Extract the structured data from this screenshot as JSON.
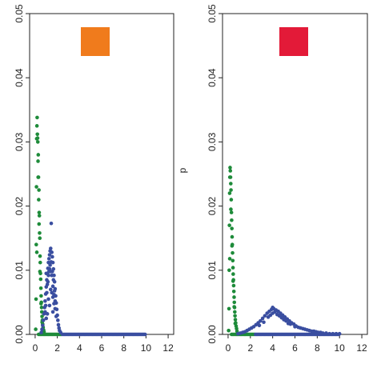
{
  "chart_data": [
    {
      "type": "scatter",
      "xlim": [
        -0.5,
        12.5
      ],
      "ylim": [
        0,
        0.05
      ],
      "x_ticks": [
        "0",
        "2",
        "4",
        "6",
        "8",
        "10",
        "12"
      ],
      "y_ticks": [
        "0.00",
        "0.01",
        "0.02",
        "0.03",
        "0.04",
        "0.05"
      ],
      "legend_color": "#f07b1c",
      "legend_placement": "top-center",
      "series": [
        {
          "color": "#1e8b3a",
          "points": [
            [
              0.05,
              0.0008
            ],
            [
              0.08,
              0.0055
            ],
            [
              0.1,
              0.014
            ],
            [
              0.12,
              0.023
            ],
            [
              0.14,
              0.0305
            ],
            [
              0.16,
              0.0325
            ],
            [
              0.18,
              0.0338
            ],
            [
              0.2,
              0.0312
            ],
            [
              0.22,
              0.0306
            ],
            [
              0.24,
              0.03
            ],
            [
              0.26,
              0.027
            ],
            [
              0.28,
              0.028
            ],
            [
              0.3,
              0.0245
            ],
            [
              0.32,
              0.021
            ],
            [
              0.34,
              0.0225
            ],
            [
              0.36,
              0.019
            ],
            [
              0.38,
              0.0185
            ],
            [
              0.4,
              0.0158
            ],
            [
              0.42,
              0.015
            ],
            [
              0.44,
              0.0122
            ],
            [
              0.46,
              0.0112
            ],
            [
              0.48,
              0.0095
            ],
            [
              0.5,
              0.0086
            ],
            [
              0.52,
              0.0072
            ],
            [
              0.54,
              0.006
            ],
            [
              0.56,
              0.005
            ],
            [
              0.58,
              0.0042
            ],
            [
              0.6,
              0.0035
            ],
            [
              0.62,
              0.0028
            ],
            [
              0.65,
              0.0022
            ],
            [
              0.68,
              0.0016
            ],
            [
              0.72,
              0.0011
            ],
            [
              0.76,
              0.0007
            ],
            [
              0.8,
              0.0004
            ],
            [
              0.15,
              0.0128
            ],
            [
              0.27,
              0.0245
            ],
            [
              0.35,
              0.0172
            ],
            [
              0.43,
              0.0098
            ],
            [
              0.53,
              0.0048
            ],
            [
              0.63,
              0.0019
            ]
          ]
        },
        {
          "color": "#3a4ea0",
          "points": [
            [
              0.55,
              0.0003
            ],
            [
              0.62,
              0.0008
            ],
            [
              0.68,
              0.0014
            ],
            [
              0.74,
              0.0022
            ],
            [
              0.8,
              0.0032
            ],
            [
              0.85,
              0.0042
            ],
            [
              0.9,
              0.0052
            ],
            [
              0.95,
              0.0063
            ],
            [
              1.0,
              0.0074
            ],
            [
              1.05,
              0.0085
            ],
            [
              1.1,
              0.0095
            ],
            [
              1.15,
              0.0103
            ],
            [
              1.2,
              0.0112
            ],
            [
              1.25,
              0.0118
            ],
            [
              1.3,
              0.0124
            ],
            [
              1.35,
              0.013
            ],
            [
              1.4,
              0.0134
            ],
            [
              1.45,
              0.0173
            ],
            [
              1.5,
              0.0128
            ],
            [
              1.55,
              0.0121
            ],
            [
              1.6,
              0.0112
            ],
            [
              1.65,
              0.0102
            ],
            [
              1.7,
              0.0092
            ],
            [
              1.75,
              0.0082
            ],
            [
              1.8,
              0.0071
            ],
            [
              1.85,
              0.006
            ],
            [
              1.9,
              0.0049
            ],
            [
              1.95,
              0.0039
            ],
            [
              2.0,
              0.003
            ],
            [
              2.05,
              0.0022
            ],
            [
              2.1,
              0.0015
            ],
            [
              2.15,
              0.001
            ],
            [
              2.2,
              0.0006
            ],
            [
              2.3,
              0.0003
            ],
            [
              0.95,
              0.0045
            ],
            [
              1.05,
              0.0065
            ],
            [
              1.15,
              0.0082
            ],
            [
              1.25,
              0.0098
            ],
            [
              1.35,
              0.0108
            ],
            [
              1.45,
              0.0113
            ],
            [
              1.55,
              0.0098
            ],
            [
              1.65,
              0.0085
            ],
            [
              1.75,
              0.0068
            ],
            [
              1.85,
              0.0049
            ],
            [
              1.0,
              0.0095
            ],
            [
              1.1,
              0.0078
            ],
            [
              1.2,
              0.0092
            ],
            [
              1.3,
              0.0102
            ],
            [
              1.4,
              0.0098
            ],
            [
              1.5,
              0.0092
            ],
            [
              1.6,
              0.0075
            ],
            [
              1.7,
              0.0062
            ],
            [
              1.8,
              0.0052
            ],
            [
              0.9,
              0.0035
            ],
            [
              1.2,
              0.0055
            ],
            [
              1.4,
              0.007
            ],
            [
              1.6,
              0.0058
            ],
            [
              1.8,
              0.004
            ],
            [
              1.9,
              0.0028
            ],
            [
              1.0,
              0.0025
            ],
            [
              1.3,
              0.0045
            ],
            [
              1.5,
              0.0065
            ],
            [
              1.7,
              0.0048
            ],
            [
              1.1,
              0.0032
            ],
            [
              1.6,
              0.0035
            ]
          ]
        }
      ]
    },
    {
      "type": "scatter",
      "xlim": [
        -0.5,
        12.5
      ],
      "ylim": [
        0,
        0.05
      ],
      "x_ticks": [
        "0",
        "2",
        "4",
        "6",
        "8",
        "10",
        "12"
      ],
      "y_ticks": [
        "0.00",
        "0.01",
        "0.02",
        "0.03",
        "0.04",
        "0.05"
      ],
      "ylabel": "p",
      "legend_color": "#e31a38",
      "legend_placement": "top-center",
      "series": [
        {
          "color": "#1e8b3a",
          "points": [
            [
              0.05,
              0.0006
            ],
            [
              0.08,
              0.004
            ],
            [
              0.1,
              0.01
            ],
            [
              0.12,
              0.017
            ],
            [
              0.14,
              0.022
            ],
            [
              0.16,
              0.0245
            ],
            [
              0.18,
              0.026
            ],
            [
              0.2,
              0.0255
            ],
            [
              0.22,
              0.0245
            ],
            [
              0.24,
              0.0235
            ],
            [
              0.26,
              0.0225
            ],
            [
              0.28,
              0.021
            ],
            [
              0.3,
              0.019
            ],
            [
              0.32,
              0.0178
            ],
            [
              0.34,
              0.0165
            ],
            [
              0.36,
              0.0152
            ],
            [
              0.38,
              0.014
            ],
            [
              0.4,
              0.0127
            ],
            [
              0.42,
              0.0115
            ],
            [
              0.44,
              0.0104
            ],
            [
              0.46,
              0.0094
            ],
            [
              0.48,
              0.0085
            ],
            [
              0.5,
              0.0076
            ],
            [
              0.52,
              0.0067
            ],
            [
              0.54,
              0.0058
            ],
            [
              0.56,
              0.005
            ],
            [
              0.58,
              0.0042
            ],
            [
              0.6,
              0.0035
            ],
            [
              0.62,
              0.0029
            ],
            [
              0.65,
              0.0023
            ],
            [
              0.68,
              0.0018
            ],
            [
              0.72,
              0.0013
            ],
            [
              0.76,
              0.0009
            ],
            [
              0.8,
              0.0005
            ],
            [
              0.15,
              0.0118
            ],
            [
              0.25,
              0.0195
            ],
            [
              0.35,
              0.0138
            ],
            [
              0.45,
              0.0083
            ],
            [
              0.55,
              0.0043
            ],
            [
              0.64,
              0.0017
            ]
          ]
        },
        {
          "color": "#3a4ea0",
          "points": [
            [
              0.9,
              0.0001
            ],
            [
              1.1,
              0.0002
            ],
            [
              1.3,
              0.0003
            ],
            [
              1.5,
              0.0004
            ],
            [
              1.7,
              0.0006
            ],
            [
              1.9,
              0.0008
            ],
            [
              2.1,
              0.001
            ],
            [
              2.3,
              0.0012
            ],
            [
              2.5,
              0.0015
            ],
            [
              2.7,
              0.0018
            ],
            [
              2.9,
              0.0021
            ],
            [
              3.1,
              0.0025
            ],
            [
              3.3,
              0.0029
            ],
            [
              3.5,
              0.0033
            ],
            [
              3.7,
              0.0036
            ],
            [
              3.9,
              0.0039
            ],
            [
              4.0,
              0.0042
            ],
            [
              4.1,
              0.004
            ],
            [
              4.3,
              0.0038
            ],
            [
              4.5,
              0.0036
            ],
            [
              4.7,
              0.0033
            ],
            [
              4.9,
              0.003
            ],
            [
              5.1,
              0.0027
            ],
            [
              5.3,
              0.0024
            ],
            [
              5.5,
              0.0021
            ],
            [
              5.7,
              0.0018
            ],
            [
              5.9,
              0.0016
            ],
            [
              6.1,
              0.0013
            ],
            [
              6.3,
              0.0011
            ],
            [
              6.5,
              0.001
            ],
            [
              6.7,
              0.0009
            ],
            [
              6.9,
              0.0008
            ],
            [
              7.1,
              0.0007
            ],
            [
              7.3,
              0.0006
            ],
            [
              7.5,
              0.0005
            ],
            [
              7.7,
              0.0005
            ],
            [
              7.9,
              0.0004
            ],
            [
              8.1,
              0.0003
            ],
            [
              8.3,
              0.0003
            ],
            [
              8.5,
              0.0002
            ],
            [
              8.8,
              0.0002
            ],
            [
              9.1,
              0.0001
            ],
            [
              9.4,
              0.0001
            ],
            [
              9.7,
              0.0001
            ],
            [
              10.0,
              0.0001
            ],
            [
              3.2,
              0.0019
            ],
            [
              3.6,
              0.0027
            ],
            [
              4.0,
              0.0033
            ],
            [
              4.4,
              0.0031
            ],
            [
              4.8,
              0.0026
            ],
            [
              5.2,
              0.0021
            ],
            [
              5.6,
              0.0016
            ],
            [
              6.0,
              0.0012
            ],
            [
              3.8,
              0.003
            ],
            [
              4.2,
              0.0035
            ],
            [
              4.6,
              0.0029
            ],
            [
              5.0,
              0.0023
            ],
            [
              2.8,
              0.0014
            ],
            [
              5.4,
              0.0017
            ]
          ]
        }
      ]
    }
  ]
}
